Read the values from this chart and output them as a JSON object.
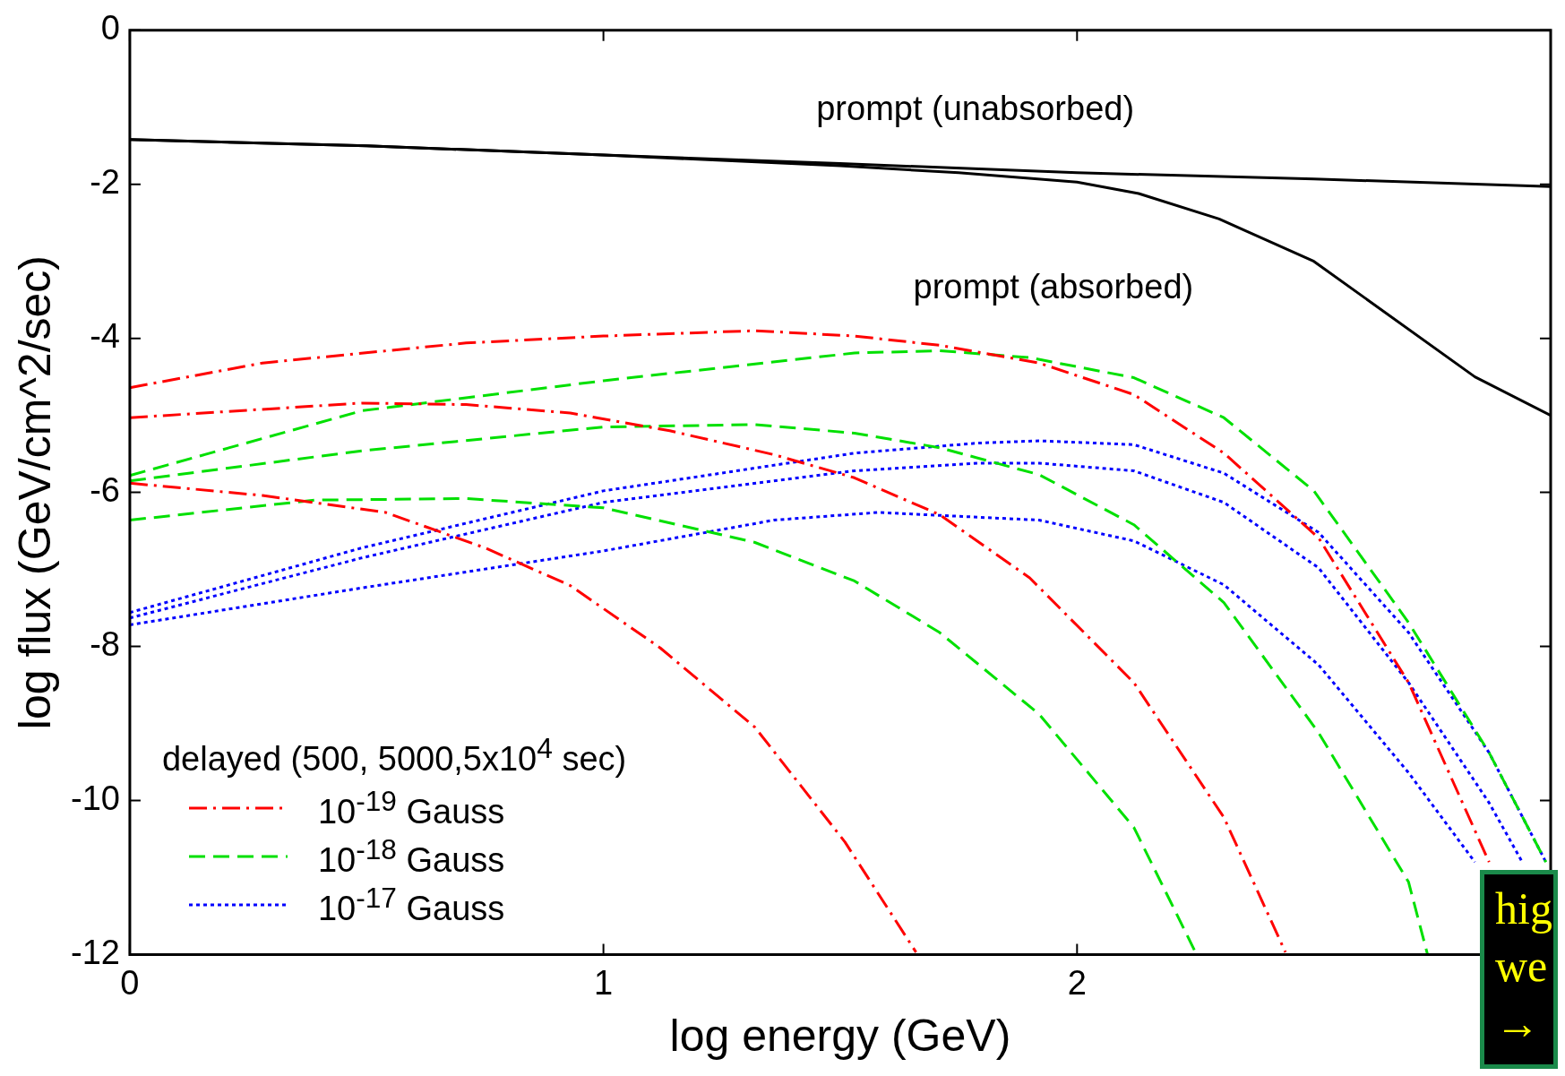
{
  "chart_data": {
    "type": "line",
    "xlabel": "log energy (GeV)",
    "ylabel": "log flux (GeV/cm^2/sec)",
    "legend_title": "delayed (500, 5000,5x10$^{4}$ sec)",
    "legend": "bottom left",
    "grid": false,
    "marker": "none",
    "xlim": [
      0,
      3
    ],
    "xticks": [
      0,
      1,
      2
    ],
    "ylim": [
      -12,
      0
    ],
    "yticks": [
      0,
      -2,
      -4,
      -6,
      -8,
      -10,
      -12
    ],
    "series": [
      {
        "color": "#000000",
        "line_style": "solid",
        "x": [
          0,
          0.5,
          1,
          1.5,
          2,
          2.5,
          3
        ],
        "values": [
          -1.42,
          -1.5,
          -1.62,
          -1.73,
          -1.85,
          -1.93,
          -2.03
        ]
      },
      {
        "color": "#000000",
        "line_style": "solid",
        "x": [
          0,
          0.5,
          1,
          1.5,
          1.75,
          2,
          2.13,
          2.3,
          2.5,
          2.84,
          3
        ],
        "values": [
          -1.42,
          -1.5,
          -1.62,
          -1.76,
          -1.85,
          -1.97,
          -2.12,
          -2.45,
          -3.0,
          -4.5,
          -5.0
        ]
      },
      {
        "name": "10$^{-19}$ Gauss",
        "color": "#ff0000",
        "line_style": "dashdot",
        "x": [
          0,
          0.28,
          0.71,
          1,
          1.32,
          1.53,
          1.71,
          1.92,
          2.12,
          2.31,
          2.51,
          2.7,
          2.87
        ],
        "values": [
          -4.64,
          -4.32,
          -4.06,
          -3.97,
          -3.9,
          -3.97,
          -4.09,
          -4.32,
          -4.73,
          -5.49,
          -6.59,
          -8.47,
          -10.8
        ]
      },
      {
        "color": "#ff0000",
        "line_style": "dashdot",
        "x": [
          0,
          0.49,
          0.71,
          0.93,
          1.14,
          1.36,
          1.53,
          1.71,
          1.9,
          2.12,
          2.31,
          2.44
        ],
        "values": [
          -5.03,
          -4.84,
          -4.86,
          -4.97,
          -5.2,
          -5.51,
          -5.81,
          -6.29,
          -7.11,
          -8.47,
          -10.22,
          -11.97
        ]
      },
      {
        "color": "#ff0000",
        "line_style": "dashdot",
        "x": [
          0,
          0.28,
          0.54,
          0.75,
          0.93,
          1.12,
          1.32,
          1.51,
          1.66
        ],
        "values": [
          -5.88,
          -6.04,
          -6.26,
          -6.72,
          -7.21,
          -8.02,
          -9.05,
          -10.54,
          -11.97
        ]
      },
      {
        "name": "10$^{-18}$ Gauss",
        "color": "#00e000",
        "line_style": "dashed",
        "x": [
          0,
          0.49,
          1,
          1.53,
          1.71,
          1.9,
          2.12,
          2.31,
          2.5,
          2.7,
          2.87,
          2.99
        ],
        "values": [
          -5.78,
          -4.94,
          -4.55,
          -4.19,
          -4.16,
          -4.25,
          -4.51,
          -5.03,
          -5.98,
          -7.69,
          -9.38,
          -10.8
        ]
      },
      {
        "color": "#00e000",
        "line_style": "dashed",
        "x": [
          0,
          0.49,
          1,
          1.32,
          1.53,
          1.71,
          1.92,
          2.12,
          2.31,
          2.51,
          2.7,
          2.74
        ],
        "values": [
          -5.85,
          -5.46,
          -5.15,
          -5.12,
          -5.23,
          -5.42,
          -5.77,
          -6.42,
          -7.43,
          -9.12,
          -11.06,
          -12
        ]
      },
      {
        "color": "#00e000",
        "line_style": "dashed",
        "x": [
          0,
          0.39,
          0.71,
          1,
          1.32,
          1.53,
          1.71,
          1.92,
          2.12,
          2.25
        ],
        "values": [
          -6.36,
          -6.1,
          -6.08,
          -6.2,
          -6.65,
          -7.15,
          -7.82,
          -8.88,
          -10.35,
          -11.97
        ]
      },
      {
        "name": "10$^{-17}$ Gauss",
        "color": "#0000ff",
        "line_style": "dotted",
        "x": [
          0,
          0.49,
          1,
          1.53,
          1.79,
          1.92,
          2.12,
          2.31,
          2.51,
          2.7,
          2.87,
          2.99
        ],
        "values": [
          -7.56,
          -6.72,
          -5.98,
          -5.49,
          -5.36,
          -5.33,
          -5.38,
          -5.75,
          -6.52,
          -7.82,
          -9.38,
          -10.8
        ]
      },
      {
        "color": "#0000ff",
        "line_style": "dotted",
        "x": [
          0,
          0.49,
          1,
          1.53,
          1.79,
          1.92,
          2.12,
          2.31,
          2.51,
          2.7,
          2.87,
          2.94
        ],
        "values": [
          -7.63,
          -6.85,
          -6.13,
          -5.72,
          -5.62,
          -5.62,
          -5.72,
          -6.13,
          -6.98,
          -8.47,
          -10.03,
          -10.8
        ]
      },
      {
        "color": "#0000ff",
        "line_style": "dotted",
        "x": [
          0,
          0.49,
          1,
          1.36,
          1.58,
          1.92,
          2.12,
          2.31,
          2.51,
          2.7,
          2.84
        ],
        "values": [
          -7.72,
          -7.24,
          -6.76,
          -6.36,
          -6.26,
          -6.36,
          -6.63,
          -7.2,
          -8.24,
          -9.64,
          -10.8
        ]
      }
    ],
    "annotations": [
      "prompt (unabsorbed)",
      "prompt (absorbed)",
      "hig",
      "we",
      "→"
    ]
  }
}
